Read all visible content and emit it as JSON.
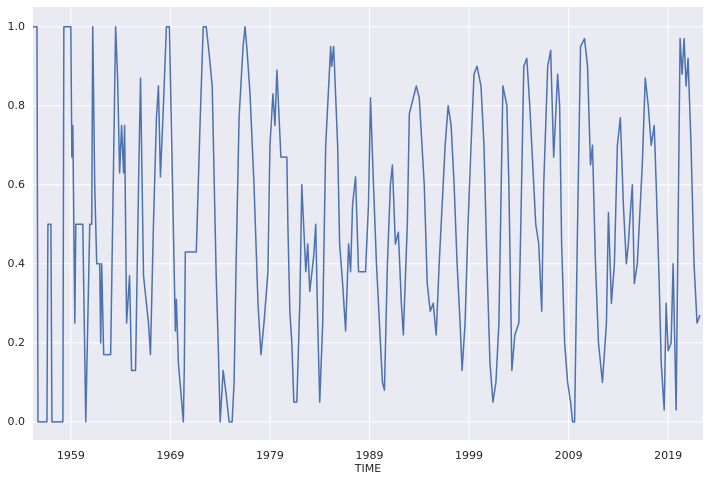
{
  "chart_data": {
    "type": "line",
    "xlabel": "TIME",
    "x": [
      1955.2,
      1955.6,
      1955.7,
      1956.6,
      1956.7,
      1957.0,
      1957.1,
      1958.2,
      1958.3,
      1959.0,
      1959.1,
      1959.2,
      1959.4,
      1959.5,
      1960.2,
      1960.5,
      1960.9,
      1961.1,
      1961.2,
      1961.4,
      1961.6,
      1961.9,
      1962.0,
      1962.1,
      1962.3,
      1963.0,
      1963.3,
      1963.5,
      1963.7,
      1963.9,
      1964.1,
      1964.3,
      1964.4,
      1964.6,
      1964.9,
      1965.1,
      1965.5,
      1965.8,
      1966.0,
      1966.3,
      1966.8,
      1967.0,
      1967.3,
      1967.6,
      1967.8,
      1968.0,
      1968.3,
      1968.6,
      1968.9,
      1969.2,
      1969.5,
      1969.6,
      1969.8,
      1970.3,
      1970.4,
      1970.5,
      1971.6,
      1972.0,
      1972.3,
      1972.6,
      1972.9,
      1973.2,
      1973.6,
      1973.8,
      1974.0,
      1974.3,
      1974.6,
      1974.9,
      1975.2,
      1975.4,
      1975.6,
      1975.9,
      1976.3,
      1976.5,
      1976.7,
      1977.0,
      1977.4,
      1977.8,
      1978.1,
      1978.4,
      1978.8,
      1979.0,
      1979.3,
      1979.5,
      1979.7,
      1980.1,
      1980.7,
      1980.8,
      1981.0,
      1981.2,
      1981.4,
      1981.7,
      1982.0,
      1982.2,
      1982.6,
      1982.8,
      1983.0,
      1983.4,
      1983.6,
      1983.8,
      1984.0,
      1984.3,
      1984.6,
      1984.8,
      1985.1,
      1985.2,
      1985.4,
      1985.8,
      1986.0,
      1986.3,
      1986.6,
      1986.9,
      1987.1,
      1987.3,
      1987.6,
      1987.9,
      1988.6,
      1988.9,
      1989.1,
      1989.4,
      1989.7,
      1990.1,
      1990.3,
      1990.5,
      1990.8,
      1991.1,
      1991.3,
      1991.6,
      1991.9,
      1992.2,
      1992.4,
      1992.8,
      1993.0,
      1993.7,
      1994.0,
      1994.5,
      1994.8,
      1995.1,
      1995.4,
      1995.7,
      1996.0,
      1996.3,
      1996.6,
      1996.9,
      1997.2,
      1997.5,
      1997.8,
      1998.1,
      1998.3,
      1998.6,
      1998.9,
      1999.2,
      1999.5,
      1999.8,
      2000.2,
      2000.5,
      2000.8,
      2001.1,
      2001.4,
      2001.7,
      2002.0,
      2002.2,
      2002.4,
      2002.8,
      2003.0,
      2003.3,
      2003.6,
      2004.0,
      2004.2,
      2004.5,
      2004.8,
      2005.1,
      2005.4,
      2005.7,
      2006.0,
      2006.3,
      2006.5,
      2006.9,
      2007.2,
      2007.5,
      2007.9,
      2008.1,
      2008.3,
      2008.6,
      2008.9,
      2009.2,
      2009.4,
      2009.6,
      2009.9,
      2010.2,
      2010.6,
      2010.9,
      2011.2,
      2011.4,
      2011.7,
      2012.0,
      2012.4,
      2012.8,
      2013.0,
      2013.3,
      2013.6,
      2013.9,
      2014.2,
      2014.5,
      2014.8,
      2015.0,
      2015.2,
      2015.4,
      2015.6,
      2015.9,
      2016.1,
      2016.4,
      2016.7,
      2017.0,
      2017.3,
      2017.6,
      2017.8,
      2018.1,
      2018.3,
      2018.6,
      2018.8,
      2019.0,
      2019.3,
      2019.5,
      2019.8,
      2020.0,
      2020.2,
      2020.4,
      2020.6,
      2020.8,
      2021.0,
      2021.3,
      2021.6,
      2021.9,
      2022.2
    ],
    "series": [
      {
        "color": "#4c72b0",
        "values": [
          1,
          1,
          0,
          0,
          0.5,
          0.5,
          0,
          0,
          1,
          1,
          0.67,
          0.75,
          0.25,
          0.5,
          0.5,
          0,
          0.5,
          0.5,
          1,
          0.6,
          0.4,
          0.4,
          0.2,
          0.4,
          0.17,
          0.17,
          0.67,
          1,
          0.87,
          0.63,
          0.75,
          0.63,
          0.75,
          0.25,
          0.37,
          0.13,
          0.13,
          0.6,
          0.87,
          0.37,
          0.25,
          0.17,
          0.5,
          0.77,
          0.85,
          0.62,
          0.8,
          1,
          1,
          0.62,
          0.23,
          0.31,
          0.15,
          0,
          0.14,
          0.43,
          0.43,
          0.77,
          1,
          1,
          0.93,
          0.85,
          0.37,
          0.2,
          0,
          0.13,
          0.07,
          0,
          0,
          0.1,
          0.4,
          0.77,
          0.95,
          1,
          0.94,
          0.83,
          0.6,
          0.3,
          0.17,
          0.25,
          0.38,
          0.7,
          0.83,
          0.75,
          0.89,
          0.67,
          0.67,
          0.5,
          0.28,
          0.2,
          0.05,
          0.05,
          0.3,
          0.6,
          0.38,
          0.45,
          0.33,
          0.42,
          0.5,
          0.25,
          0.05,
          0.25,
          0.7,
          0.8,
          0.95,
          0.9,
          0.95,
          0.7,
          0.45,
          0.35,
          0.23,
          0.45,
          0.38,
          0.55,
          0.62,
          0.38,
          0.38,
          0.55,
          0.82,
          0.6,
          0.4,
          0.2,
          0.1,
          0.08,
          0.4,
          0.6,
          0.65,
          0.45,
          0.48,
          0.3,
          0.22,
          0.5,
          0.78,
          0.85,
          0.82,
          0.6,
          0.35,
          0.28,
          0.3,
          0.22,
          0.4,
          0.55,
          0.7,
          0.8,
          0.75,
          0.6,
          0.4,
          0.25,
          0.13,
          0.25,
          0.5,
          0.7,
          0.88,
          0.9,
          0.85,
          0.7,
          0.4,
          0.15,
          0.05,
          0.1,
          0.25,
          0.55,
          0.85,
          0.8,
          0.6,
          0.13,
          0.22,
          0.25,
          0.5,
          0.9,
          0.92,
          0.8,
          0.65,
          0.5,
          0.45,
          0.28,
          0.6,
          0.9,
          0.94,
          0.67,
          0.88,
          0.8,
          0.45,
          0.2,
          0.1,
          0.05,
          0,
          0,
          0.5,
          0.95,
          0.97,
          0.9,
          0.65,
          0.7,
          0.4,
          0.2,
          0.1,
          0.25,
          0.53,
          0.3,
          0.4,
          0.7,
          0.77,
          0.55,
          0.4,
          0.45,
          0.53,
          0.6,
          0.35,
          0.4,
          0.5,
          0.65,
          0.87,
          0.8,
          0.7,
          0.75,
          0.6,
          0.35,
          0.15,
          0.03,
          0.3,
          0.18,
          0.2,
          0.4,
          0.03,
          0.5,
          0.97,
          0.88,
          0.97,
          0.85,
          0.92,
          0.7,
          0.4,
          0.25,
          0.27
        ]
      }
    ],
    "xlim": [
      1955.2,
      2022.5
    ],
    "xticks": [
      1959,
      1969,
      1979,
      1989,
      1999,
      2009,
      2019
    ],
    "ylim": [
      -0.046,
      1.05
    ],
    "yticks": [
      {
        "value": 0,
        "label": "0.0"
      },
      0.2,
      0.4,
      0.6,
      0.8,
      {
        "value": 1,
        "label": "1.0"
      }
    ],
    "grid": true
  }
}
